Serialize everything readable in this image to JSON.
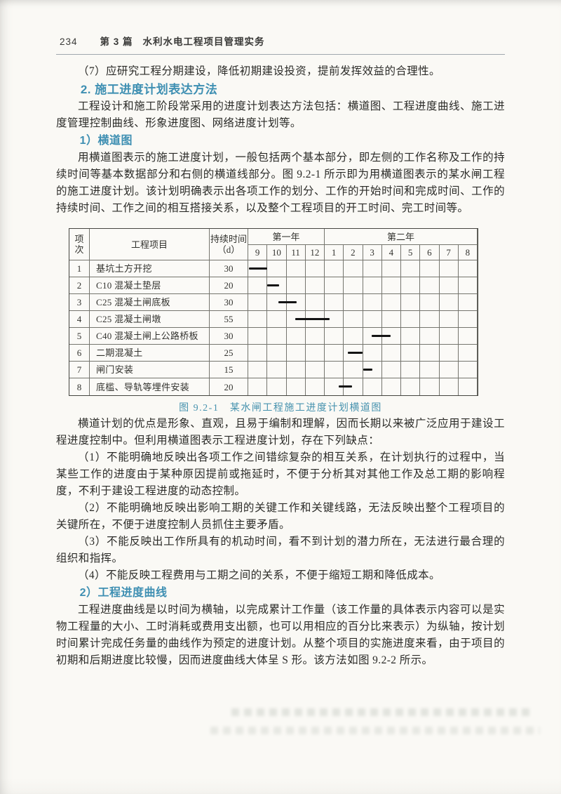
{
  "header": {
    "page_number": "234",
    "part_label": "第 3 篇",
    "title": "水利水电工程项目管理实务"
  },
  "headings": {
    "methods": "2. 施工进度计划表达方法",
    "bar_chart": "1）横道图",
    "progress_curve": "2）工程进度曲线"
  },
  "paragraphs": {
    "item7": "（7）应研究工程分期建设，降低初期建设投资，提前发挥效益的合理性。",
    "methods_intro": "工程设计和施工阶段常采用的进度计划表达方法包括：横道图、工程进度曲线、施工进度管理控制曲线、形象进度图、网络进度计划等。",
    "bar_intro": "用横道图表示的施工进度计划，一般包括两个基本部分，即左侧的工作名称及工作的持续时间等基本数据部分和右侧的横道线部分。图 9.2-1 所示即为用横道图表示的某水闸工程的施工进度计划。该计划明确表示出各项工作的划分、工作的开始时间和完成时间、工作的持续时间、工作之间的相互搭接关系，以及整个工程项目的开工时间、完工时间等。",
    "advantages": "横道计划的优点是形象、直观，且易于编制和理解，因而长期以来被广泛应用于建设工程进度控制中。但利用横道图表示工程进度计划，存在下列缺点：",
    "defect1": "（1）不能明确地反映出各项工作之间错综复杂的相互关系，在计划执行的过程中，当某些工作的进度由于某种原因提前或拖延时，不便于分析其对其他工作及总工期的影响程度，不利于建设工程进度的动态控制。",
    "defect2": "（2）不能明确地反映出影响工期的关键工作和关键线路，无法反映出整个工程项目的关键所在，不便于进度控制人员抓住主要矛盾。",
    "defect3": "（3）不能反映出工作所具有的机动时间，看不到计划的潜力所在，无法进行最合理的组织和指挥。",
    "defect4": "（4）不能反映工程费用与工期之间的关系，不便于缩短工期和降低成本。",
    "curve_intro": "工程进度曲线是以时间为横轴，以完成累计工作量（该工作量的具体表示内容可以是实物工程量的大小、工时消耗或费用支出额，也可以用相应的百分比来表示）为纵轴，按计划时间累计完成任务量的曲线作为预定的进度计划。从整个项目的实施进度来看，由于项目的初期和后期进度比较慢，因而进度曲线大体呈 S 形。该方法如图 9.2-2 所示。"
  },
  "figure": {
    "caption": "图 9.2-1　某水闸工程施工进度计划横道图"
  },
  "colors": {
    "accent_teal": "#3e8fb2",
    "body_text": "#2b2b28",
    "table_line": "#75756e",
    "bar_color": "#141414"
  },
  "chart_data": {
    "type": "gantt-bar",
    "title": "某水闸工程施工进度计划横道图",
    "header": {
      "index": "项\n次",
      "task": "工程项目",
      "duration": "持续时间\n（d）"
    },
    "year_groups": [
      {
        "label": "第一年",
        "months": [
          "9",
          "10",
          "11",
          "12"
        ]
      },
      {
        "label": "第二年",
        "months": [
          "1",
          "2",
          "3",
          "4",
          "5",
          "6",
          "7",
          "8"
        ]
      }
    ],
    "rows": [
      {
        "index": "1",
        "task": "基坑土方开挖",
        "duration": "30",
        "bar_start": 0.05,
        "bar_len": 0.95
      },
      {
        "index": "2",
        "task": "C10 混凝土垫层",
        "duration": "20",
        "bar_start": 1.0,
        "bar_len": 0.62
      },
      {
        "index": "3",
        "task": "C25 混凝土闸底板",
        "duration": "30",
        "bar_start": 1.58,
        "bar_len": 0.95
      },
      {
        "index": "4",
        "task": "C25 混凝土闸墩",
        "duration": "55",
        "bar_start": 2.45,
        "bar_len": 1.82
      },
      {
        "index": "5",
        "task": "C40 混凝土闸上公路桥板",
        "duration": "30",
        "bar_start": 6.45,
        "bar_len": 1.0
      },
      {
        "index": "6",
        "task": "二期混凝土",
        "duration": "25",
        "bar_start": 5.2,
        "bar_len": 0.78
      },
      {
        "index": "7",
        "task": "闸门安装",
        "duration": "15",
        "bar_start": 6.02,
        "bar_len": 0.46
      },
      {
        "index": "8",
        "task": "底槛、导轨等埋件安装",
        "duration": "20",
        "bar_start": 4.75,
        "bar_len": 0.68
      }
    ]
  }
}
